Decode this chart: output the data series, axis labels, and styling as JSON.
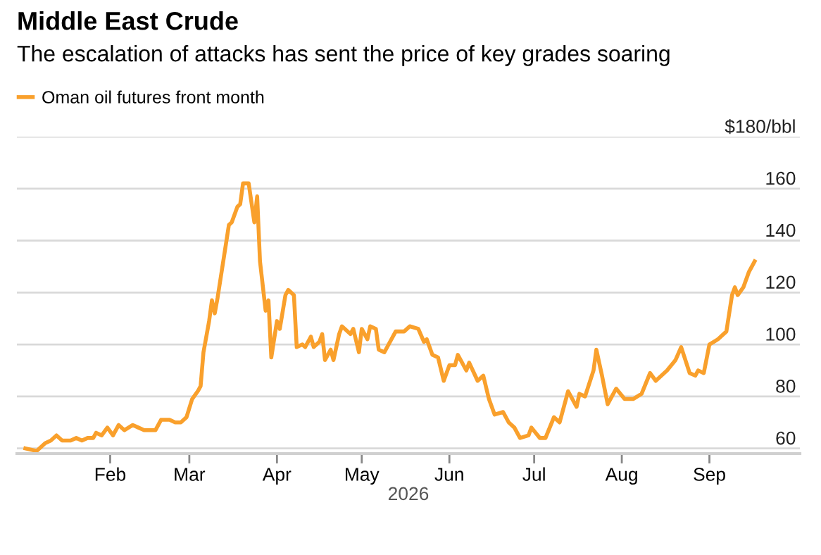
{
  "chart_data": {
    "type": "line",
    "title": "Middle East Crude",
    "subtitle": "The escalation of attacks has sent the price of key grades soaring",
    "xlabel": "2026",
    "x": [
      "2026-01-02",
      "2026-01-06",
      "2026-01-09",
      "2026-01-11",
      "2026-01-13",
      "2026-01-15",
      "2026-01-18",
      "2026-01-20",
      "2026-01-22",
      "2026-01-24",
      "2026-01-26",
      "2026-01-27",
      "2026-01-29",
      "2026-01-31",
      "2026-02-02",
      "2026-02-04",
      "2026-02-06",
      "2026-02-09",
      "2026-02-11",
      "2026-02-13",
      "2026-02-17",
      "2026-02-19",
      "2026-02-22",
      "2026-02-24",
      "2026-02-26",
      "2026-02-28",
      "2026-03-02",
      "2026-03-04",
      "2026-03-05",
      "2026-03-06",
      "2026-03-08",
      "2026-03-09",
      "2026-03-10",
      "2026-03-11",
      "2026-03-14",
      "2026-03-15",
      "2026-03-16",
      "2026-03-18",
      "2026-03-19",
      "2026-03-20",
      "2026-03-22",
      "2026-03-24",
      "2026-03-25",
      "2026-03-26",
      "2026-03-28",
      "2026-03-29",
      "2026-03-30",
      "2026-04-01",
      "2026-04-02",
      "2026-04-04",
      "2026-04-05",
      "2026-04-07",
      "2026-04-08",
      "2026-04-10",
      "2026-04-11",
      "2026-04-13",
      "2026-04-14",
      "2026-04-16",
      "2026-04-17",
      "2026-04-18",
      "2026-04-20",
      "2026-04-21",
      "2026-04-23",
      "2026-04-24",
      "2026-04-27",
      "2026-04-28",
      "2026-04-30",
      "2026-05-01",
      "2026-05-03",
      "2026-05-04",
      "2026-05-06",
      "2026-05-07",
      "2026-05-09",
      "2026-05-10",
      "2026-05-13",
      "2026-05-16",
      "2026-05-18",
      "2026-05-21",
      "2026-05-23",
      "2026-05-24",
      "2026-05-26",
      "2026-05-28",
      "2026-05-30",
      "2026-06-01",
      "2026-06-03",
      "2026-06-04",
      "2026-06-07",
      "2026-06-08",
      "2026-06-11",
      "2026-06-13",
      "2026-06-15",
      "2026-06-17",
      "2026-06-20",
      "2026-06-22",
      "2026-06-24",
      "2026-06-26",
      "2026-06-29",
      "2026-06-30",
      "2026-07-03",
      "2026-07-05",
      "2026-07-08",
      "2026-07-10",
      "2026-07-13",
      "2026-07-16",
      "2026-07-17",
      "2026-07-19",
      "2026-07-22",
      "2026-07-23",
      "2026-07-25",
      "2026-07-27",
      "2026-07-30",
      "2026-08-02",
      "2026-08-05",
      "2026-08-08",
      "2026-08-11",
      "2026-08-13",
      "2026-08-17",
      "2026-08-20",
      "2026-08-22",
      "2026-08-25",
      "2026-08-27",
      "2026-08-28",
      "2026-08-30",
      "2026-09-01",
      "2026-09-04",
      "2026-09-07",
      "2026-09-09",
      "2026-09-10",
      "2026-09-11",
      "2026-09-13",
      "2026-09-15",
      "2026-09-17"
    ],
    "series": [
      {
        "name": "Oman oil futures front month",
        "color": "#f9a02c",
        "values": [
          60,
          59,
          62,
          63,
          65,
          63,
          63,
          64,
          63,
          64,
          64,
          66,
          65,
          68,
          65,
          69,
          67,
          69,
          68,
          67,
          67,
          71,
          71,
          70,
          70,
          72,
          79,
          82,
          84,
          97,
          109,
          117,
          112,
          118,
          139,
          146,
          147,
          153,
          154,
          162,
          162,
          147,
          157,
          132,
          113,
          117,
          95,
          109,
          106,
          119,
          121,
          119,
          99,
          100,
          99,
          103,
          99,
          101,
          104,
          94,
          98,
          94,
          104,
          107,
          104,
          106,
          97,
          106,
          102,
          107,
          106,
          98,
          97,
          99,
          105,
          105,
          107,
          106,
          101,
          102,
          96,
          95,
          86,
          92,
          92,
          96,
          90,
          93,
          86,
          88,
          79,
          73,
          74,
          70,
          68,
          64,
          65,
          68,
          64,
          64,
          72,
          70,
          82,
          76,
          81,
          80,
          90,
          98,
          88,
          77,
          83,
          79,
          79,
          81,
          89,
          86,
          90,
          94,
          99,
          89,
          88,
          90,
          89,
          100,
          102,
          105,
          119,
          122,
          119,
          122,
          128,
          132
        ]
      }
    ],
    "xlim": [
      "2025-12-30",
      "2026-10-03"
    ],
    "xticks": [
      {
        "value": "2026-02-01",
        "label": "Feb"
      },
      {
        "value": "2026-03-01",
        "label": "Mar"
      },
      {
        "value": "2026-04-01",
        "label": "Apr"
      },
      {
        "value": "2026-05-01",
        "label": "May"
      },
      {
        "value": "2026-06-01",
        "label": "Jun"
      },
      {
        "value": "2026-07-01",
        "label": "Jul"
      },
      {
        "value": "2026-08-01",
        "label": "Aug"
      },
      {
        "value": "2026-09-01",
        "label": "Sep"
      }
    ],
    "ylim": [
      58,
      180
    ],
    "yticks": [
      60,
      80,
      100,
      120,
      140,
      160,
      {
        "value": 180,
        "label": "$180/bbl"
      }
    ],
    "grid": "y",
    "legend": "top left",
    "marker": "none",
    "line_style": "solid"
  }
}
